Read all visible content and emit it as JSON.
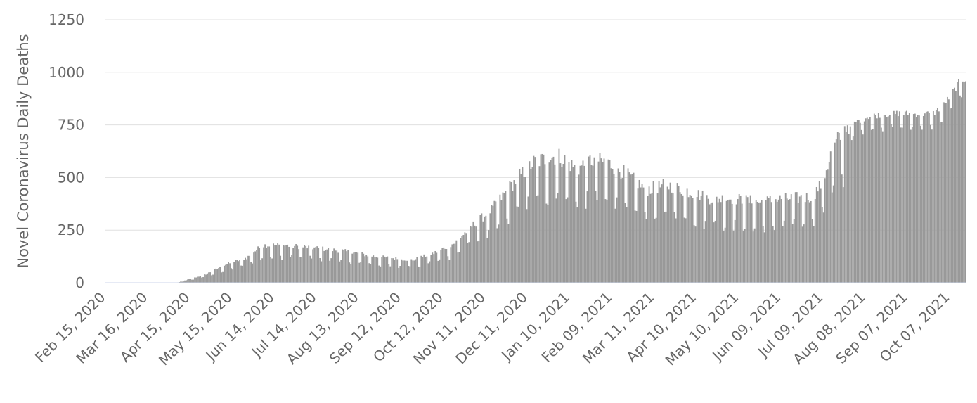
{
  "chart_data": {
    "type": "bar",
    "ylabel": "Novel Coronavirus Daily Deaths",
    "xlabel": "",
    "ylim": [
      0,
      1250
    ],
    "yticks": [
      0,
      250,
      500,
      750,
      1000,
      1250
    ],
    "x_start": "2020-02-15",
    "x_end": "2021-10-18",
    "xtick_labels": [
      "Feb 15, 2020",
      "Mar 16, 2020",
      "Apr 15, 2020",
      "May 15, 2020",
      "Jun 14, 2020",
      "Jul 14, 2020",
      "Aug 13, 2020",
      "Sep 12, 2020",
      "Oct 12, 2020",
      "Nov 11, 2020",
      "Dec 11, 2020",
      "Jan 10, 2021",
      "Feb 09, 2021",
      "Mar 11, 2021",
      "Apr 10, 2021",
      "May 10, 2021",
      "Jun 09, 2021",
      "Jul 09, 2021",
      "Aug 08, 2021",
      "Sep 07, 2021",
      "Oct 07, 2021"
    ],
    "grid": true,
    "bar_color": "#999999",
    "series": [
      {
        "trend_points": [
          [
            "2020-02-15",
            0
          ],
          [
            "2020-04-05",
            0
          ],
          [
            "2020-04-10",
            8
          ],
          [
            "2020-04-25",
            35
          ],
          [
            "2020-05-10",
            80
          ],
          [
            "2020-05-25",
            110
          ],
          [
            "2020-06-05",
            165
          ],
          [
            "2020-06-20",
            165
          ],
          [
            "2020-07-10",
            155
          ],
          [
            "2020-08-01",
            140
          ],
          [
            "2020-08-25",
            115
          ],
          [
            "2020-09-20",
            100
          ],
          [
            "2020-10-05",
            130
          ],
          [
            "2020-10-20",
            175
          ],
          [
            "2020-11-01",
            250
          ],
          [
            "2020-11-15",
            320
          ],
          [
            "2020-11-28",
            420
          ],
          [
            "2020-12-05",
            470
          ],
          [
            "2020-12-15",
            530
          ],
          [
            "2021-01-01",
            560
          ],
          [
            "2021-01-15",
            500
          ],
          [
            "2021-01-25",
            540
          ],
          [
            "2021-02-05",
            530
          ],
          [
            "2021-02-14",
            500
          ],
          [
            "2021-02-20",
            470
          ],
          [
            "2021-03-05",
            410
          ],
          [
            "2021-03-20",
            430
          ],
          [
            "2021-04-05",
            400
          ],
          [
            "2021-04-20",
            370
          ],
          [
            "2021-05-05",
            370
          ],
          [
            "2021-05-25",
            355
          ],
          [
            "2021-06-10",
            370
          ],
          [
            "2021-06-25",
            375
          ],
          [
            "2021-07-01",
            380
          ],
          [
            "2021-07-08",
            440
          ],
          [
            "2021-07-15",
            580
          ],
          [
            "2021-07-25",
            690
          ],
          [
            "2021-08-01",
            750
          ],
          [
            "2021-08-10",
            775
          ],
          [
            "2021-08-20",
            785
          ],
          [
            "2021-09-01",
            790
          ],
          [
            "2021-09-15",
            785
          ],
          [
            "2021-09-25",
            790
          ],
          [
            "2021-10-01",
            820
          ],
          [
            "2021-10-07",
            870
          ],
          [
            "2021-10-15",
            950
          ],
          [
            "2021-10-18",
            950
          ]
        ]
      }
    ]
  }
}
